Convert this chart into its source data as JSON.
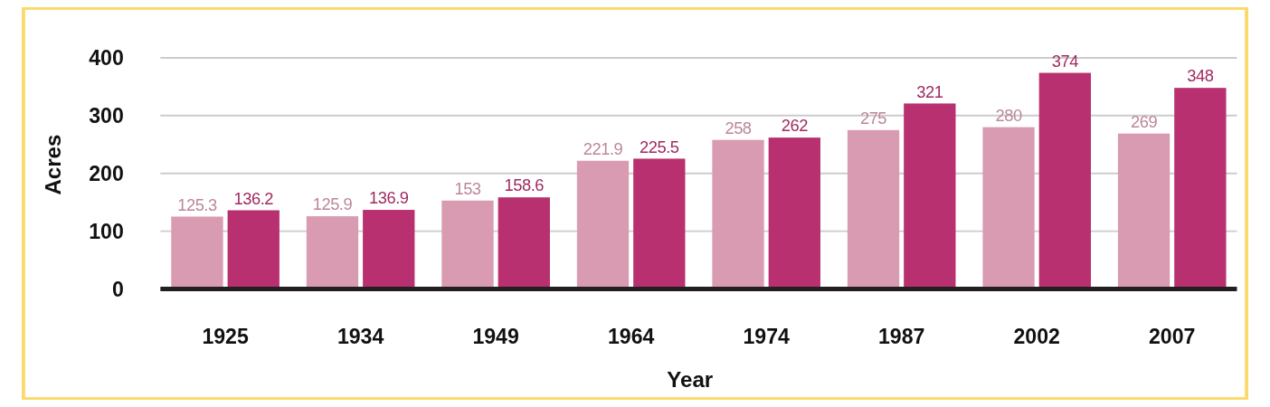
{
  "chart_data": {
    "type": "bar",
    "xlabel": "Year",
    "ylabel": "Acres",
    "categories": [
      "1925",
      "1934",
      "1949",
      "1964",
      "1974",
      "1987",
      "2002",
      "2007"
    ],
    "series": [
      {
        "color": "#d99bb2",
        "values": [
          125.3,
          125.9,
          153,
          221.9,
          258,
          275,
          280,
          269
        ]
      },
      {
        "color": "#b8306f",
        "values": [
          136.2,
          136.9,
          158.6,
          225.5,
          262,
          321,
          374,
          348
        ]
      }
    ],
    "ylim": [
      0,
      400
    ],
    "yticks": [
      0,
      100,
      200,
      300,
      400
    ],
    "grid": "y",
    "data_labels": true
  }
}
